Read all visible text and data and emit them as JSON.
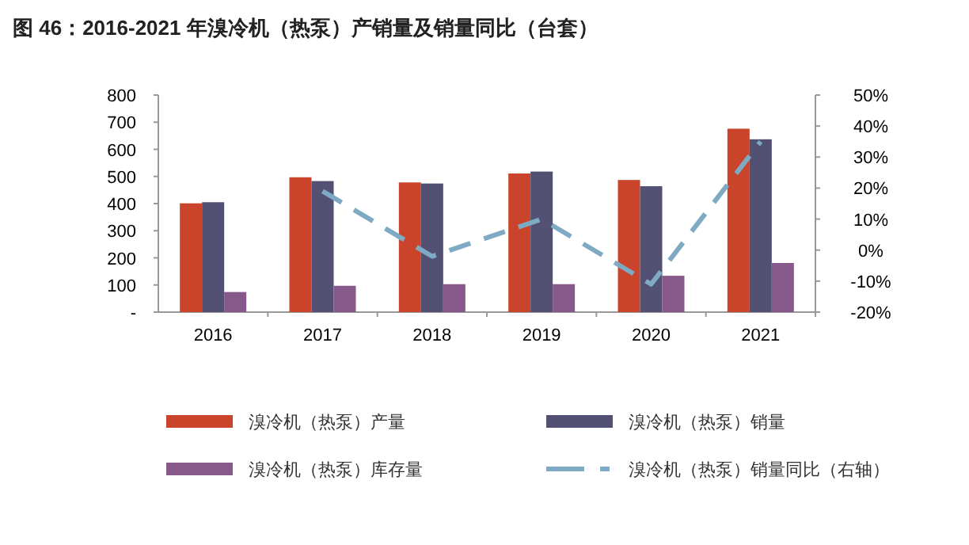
{
  "chart_data": {
    "type": "bar",
    "title": "图 46：2016-2021 年溴冷机（热泵）产销量及销量同比（台套）",
    "categories": [
      "2016",
      "2017",
      "2018",
      "2019",
      "2020",
      "2021"
    ],
    "series": [
      {
        "name": "溴冷机（热泵）产量",
        "color": "#c9442a",
        "values": [
          401,
          497,
          478,
          511,
          487,
          676
        ]
      },
      {
        "name": "溴冷机（热泵）销量",
        "color": "#525073",
        "values": [
          405,
          483,
          474,
          518,
          464,
          637
        ]
      },
      {
        "name": "溴冷机（热泵）库存量",
        "color": "#87598b",
        "values": [
          74,
          97,
          103,
          103,
          134,
          181
        ]
      },
      {
        "name": "溴冷机（热泵）销量同比（右轴）",
        "color": "#7eaac3",
        "type": "line",
        "axis": "y2",
        "line_style": "dashed",
        "values": [
          null,
          19,
          -2,
          10,
          -11,
          35
        ]
      }
    ],
    "ylim": [
      0,
      800
    ],
    "yticks": [
      {
        "value": 0,
        "label": "-"
      },
      100,
      200,
      300,
      400,
      500,
      600,
      700,
      800
    ],
    "y2lim": [
      -20,
      50
    ],
    "y2ticks": [
      {
        "value": -20,
        "label": "-20%"
      },
      {
        "value": -10,
        "label": "-10%"
      },
      {
        "value": 0,
        "label": "0%"
      },
      {
        "value": 10,
        "label": "10%"
      },
      {
        "value": 20,
        "label": "20%"
      },
      {
        "value": 30,
        "label": "30%"
      },
      {
        "value": 40,
        "label": "40%"
      },
      {
        "value": 50,
        "label": "50%"
      }
    ],
    "grid": false,
    "legend": "bottom"
  }
}
